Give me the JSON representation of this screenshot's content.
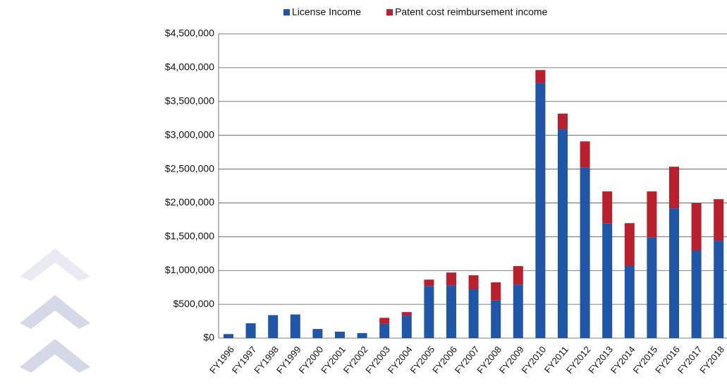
{
  "chart_data": {
    "type": "stacked_bar",
    "categories": [
      "FY1996",
      "FY1997",
      "FY1998",
      "FY1999",
      "FY2000",
      "FY2001",
      "FY2002",
      "FY2003",
      "FY2004",
      "FY2005",
      "FY2006",
      "FY2007",
      "FY2008",
      "FY2009",
      "FY2010",
      "FY2011",
      "FY2012",
      "FY2013",
      "FY2014",
      "FY2015",
      "FY2016",
      "FY2017",
      "FY2018"
    ],
    "series": [
      {
        "name": "License Income",
        "color": "#1f56a8",
        "values": [
          60000,
          220000,
          340000,
          350000,
          135000,
          95000,
          75000,
          210000,
          330000,
          770000,
          780000,
          720000,
          555000,
          790000,
          3770000,
          3090000,
          2525000,
          1700000,
          1065000,
          1490000,
          1920000,
          1295000,
          1440000
        ]
      },
      {
        "name": "Patent cost reimbursement income",
        "color": "#b8202e",
        "values": [
          0,
          0,
          0,
          0,
          0,
          0,
          0,
          90000,
          55000,
          95000,
          190000,
          210000,
          270000,
          275000,
          195000,
          230000,
          385000,
          470000,
          635000,
          680000,
          615000,
          700000,
          615000
        ]
      }
    ],
    "ylim": [
      0,
      4500000
    ],
    "yticks": [
      {
        "value": 0,
        "label": "$0"
      },
      {
        "value": 500000,
        "label": "$500,000"
      },
      {
        "value": 1000000,
        "label": "$1,000,000"
      },
      {
        "value": 1500000,
        "label": "$1,500,000"
      },
      {
        "value": 2000000,
        "label": "$2,000,000"
      },
      {
        "value": 2500000,
        "label": "$2,500,000"
      },
      {
        "value": 3000000,
        "label": "$3,000,000"
      },
      {
        "value": 3500000,
        "label": "$3,500,000"
      },
      {
        "value": 4000000,
        "label": "$4,000,000"
      },
      {
        "value": 4500000,
        "label": "$4,500,000"
      }
    ],
    "grid": true,
    "legend": "top"
  }
}
